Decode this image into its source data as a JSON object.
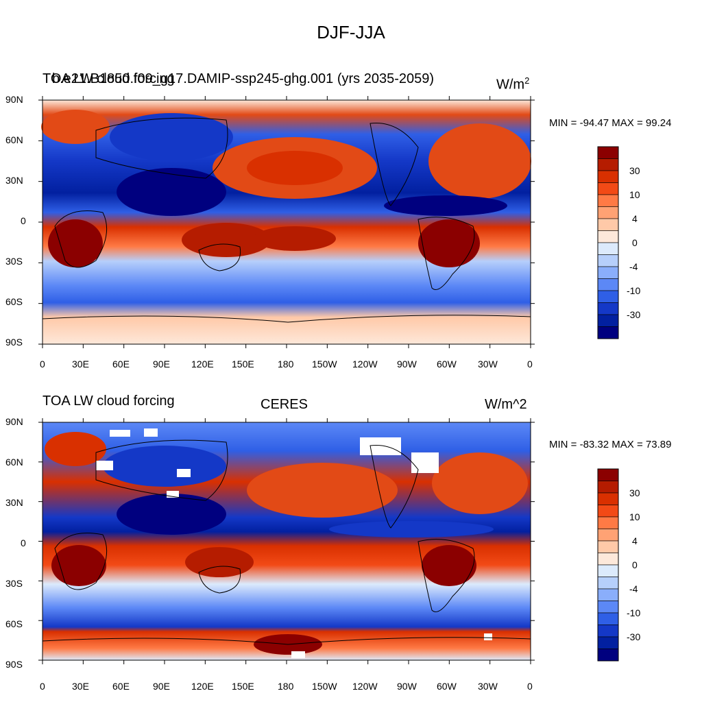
{
  "figure": {
    "title": "DJF-JJA",
    "xticks": [
      "0",
      "30E",
      "60E",
      "90E",
      "120E",
      "150E",
      "180",
      "150W",
      "120W",
      "90W",
      "60W",
      "30W",
      "0"
    ],
    "yticks": [
      "90N",
      "60N",
      "30N",
      "0",
      "30S",
      "60S",
      "90S"
    ],
    "colorbar_labels": [
      "30",
      "10",
      "4",
      "0",
      "-4",
      "-10",
      "-30"
    ],
    "colorbar_colors": [
      "#8b0000",
      "#b51c00",
      "#d93000",
      "#f24a16",
      "#ff7a45",
      "#ffa274",
      "#ffc9a8",
      "#fde8da",
      "#dceafc",
      "#b6cffb",
      "#8aaefb",
      "#5c88f6",
      "#2f5fe6",
      "#1438c7",
      "#0220a0",
      "#00007f"
    ],
    "color_legend": {
      "positive": "#c82a00",
      "negative": "#1e4fd8",
      "neutral": "#fbe6d8"
    }
  },
  "panels": [
    {
      "left_title": "TOA LW cloud forcing",
      "center_title": "b.e21.B1850.f09_g17.DAMIP-ssp245-ghg.001 (yrs 2035-2059)",
      "units": "W/m",
      "units_sup": "2",
      "stats": "MIN = -94.47 MAX =  99.24"
    },
    {
      "left_title": "TOA LW cloud forcing",
      "center_title": "CERES",
      "units": "W/m^2",
      "units_sup": "",
      "stats": "MIN = -83.32 MAX =  73.89"
    }
  ]
}
